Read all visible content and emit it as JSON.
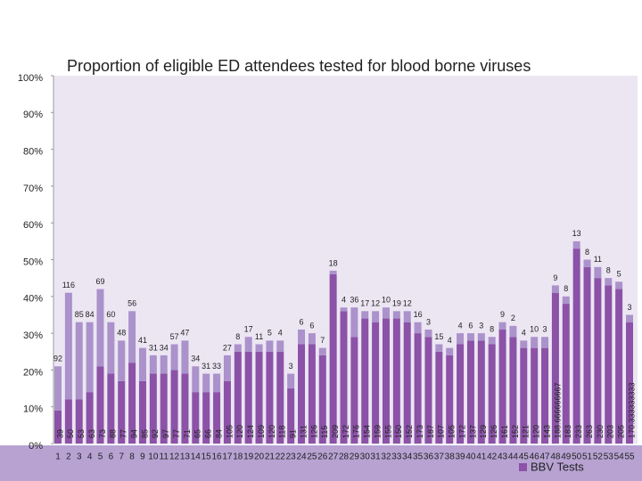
{
  "chart_data": {
    "type": "stacked_bar",
    "title": "Proportion of eligible ED attendees tested for blood borne viruses",
    "categories": [
      "1",
      "2",
      "3",
      "4",
      "5",
      "6",
      "7",
      "8",
      "9",
      "10",
      "11",
      "12",
      "13",
      "14",
      "15",
      "16",
      "17",
      "18",
      "19",
      "20",
      "21",
      "22",
      "23",
      "24",
      "25",
      "26",
      "27",
      "28",
      "29",
      "30",
      "31",
      "32",
      "33",
      "34",
      "35",
      "36",
      "37",
      "38",
      "39",
      "40",
      "41",
      "42",
      "43",
      "44",
      "45",
      "46",
      "47",
      "48",
      "49",
      "50",
      "51",
      "52",
      "53",
      "54",
      "55"
    ],
    "series": [
      {
        "name": "BBV Tests",
        "color": "#8b52a7",
        "values": [
          9,
          12,
          12,
          14,
          21,
          19,
          17,
          22,
          17,
          19,
          19,
          20,
          19,
          14,
          14,
          14,
          17,
          25,
          25,
          25,
          25,
          25,
          15,
          27,
          27,
          24,
          46,
          36,
          29,
          34,
          33,
          34,
          34,
          33,
          30,
          29,
          25,
          24,
          27,
          28,
          28,
          27,
          31,
          29,
          26,
          26,
          26,
          41,
          38,
          53,
          48,
          45,
          43,
          42,
          33
        ],
        "labels": [
          39,
          50,
          53,
          63,
          73,
          88,
          77,
          94,
          85,
          92,
          97,
          77,
          71,
          65,
          66,
          84,
          105,
          120,
          124,
          109,
          120,
          118,
          91,
          131,
          126,
          115,
          209,
          172,
          176,
          154,
          159,
          155,
          150,
          152,
          173,
          187,
          107,
          105,
          172,
          137,
          129,
          126,
          161,
          152,
          121,
          120,
          143,
          "188.666666667",
          183,
          233,
          263,
          230,
          203,
          205,
          "170.333333333"
        ]
      },
      {
        "color": "#ab92cb",
        "values": [
          12,
          29,
          21,
          19,
          21,
          14,
          11,
          14,
          9,
          5,
          5,
          7,
          9,
          7,
          5,
          5,
          7,
          2,
          4,
          2,
          3,
          3,
          4,
          4,
          3,
          2,
          1,
          1,
          8,
          2,
          3,
          3,
          2,
          3,
          3,
          2,
          2,
          2,
          3,
          2,
          2,
          2,
          2,
          3,
          2,
          3,
          3,
          2,
          2,
          2,
          2,
          3,
          2,
          2,
          2
        ],
        "labels": [
          92,
          116,
          85,
          84,
          69,
          60,
          48,
          56,
          41,
          31,
          34,
          57,
          47,
          34,
          31,
          33,
          27,
          8,
          17,
          11,
          5,
          4,
          3,
          6,
          6,
          7,
          18,
          4,
          36,
          17,
          12,
          10,
          19,
          12,
          16,
          3,
          15,
          4,
          4,
          6,
          3,
          8,
          9,
          2,
          4,
          10,
          3,
          9,
          8,
          13,
          8,
          11,
          8,
          5,
          3
        ]
      }
    ],
    "ylim": [
      0,
      100
    ],
    "yticks": [
      {
        "value": 0,
        "label": "0%"
      },
      {
        "value": 10,
        "label": "10%"
      },
      {
        "value": 20,
        "label": "20%"
      },
      {
        "value": 30,
        "label": "30%"
      },
      {
        "value": 40,
        "label": "40%"
      },
      {
        "value": 50,
        "label": "50%"
      },
      {
        "value": 60,
        "label": "60%"
      },
      {
        "value": 70,
        "label": "70%"
      },
      {
        "value": 80,
        "label": "80%"
      },
      {
        "value": 90,
        "label": "90%"
      },
      {
        "value": 100,
        "label": "100%"
      }
    ],
    "legend": "bottom-right"
  }
}
